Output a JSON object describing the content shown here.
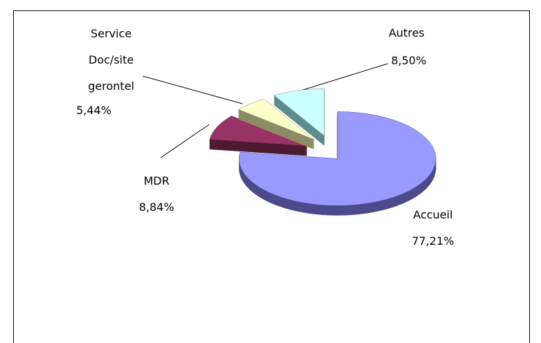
{
  "chart_data": {
    "type": "pie",
    "categories": [
      "Accueil",
      "MDR",
      "Service Doc/site gerontel",
      "Autres"
    ],
    "values": [
      77.21,
      8.84,
      5.44,
      8.5
    ],
    "value_labels": [
      "77,21%",
      "8,84%",
      "5,44%",
      "8,50%"
    ],
    "colors": [
      "#9999ff",
      "#993366",
      "#ffffcc",
      "#ccffff"
    ],
    "side_colors": [
      "#4b4b8c",
      "#4d1a33",
      "#8c8c66",
      "#5f8c8c"
    ]
  }
}
